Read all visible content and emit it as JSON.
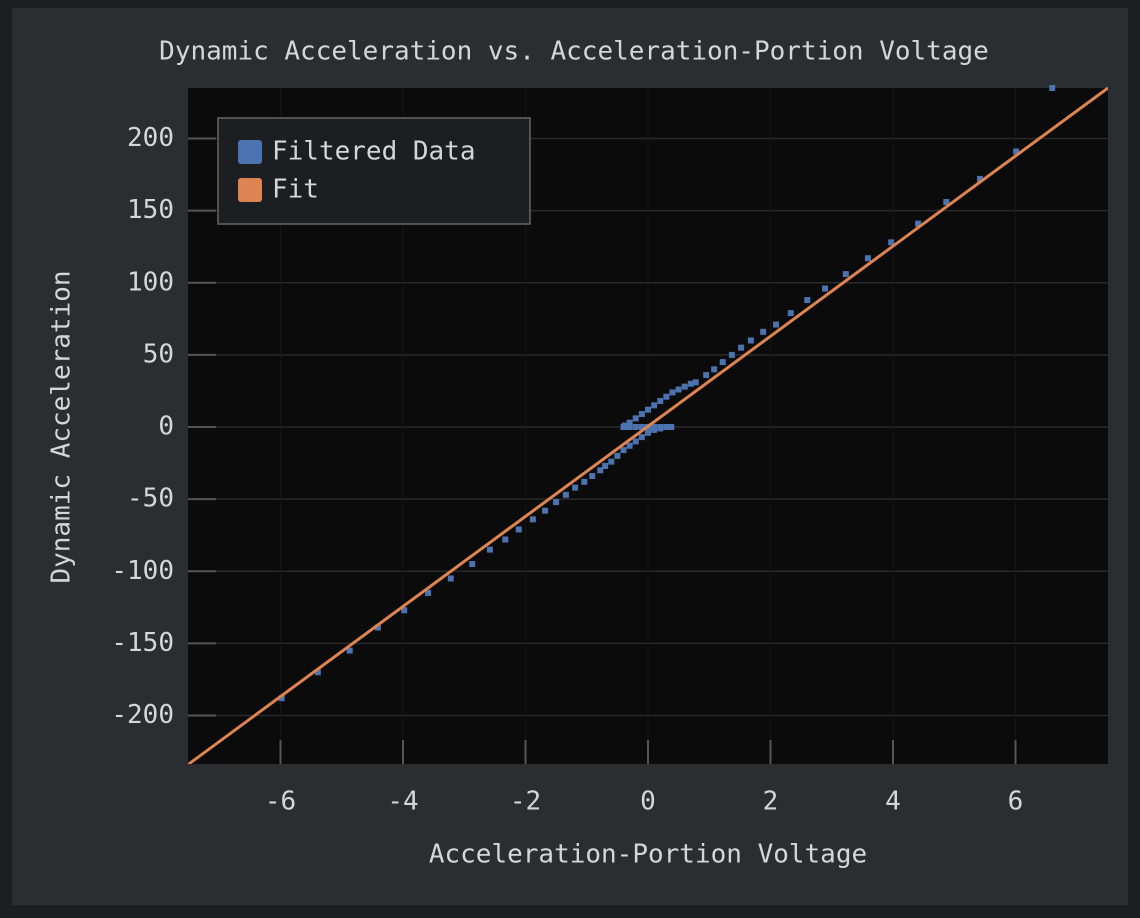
{
  "chart_data": {
    "type": "scatter",
    "title": "Dynamic Acceleration vs. Acceleration-Portion Voltage",
    "x_label": "Acceleration-Portion Voltage",
    "y_label": "Dynamic Acceleration",
    "xlim": [
      -7.51,
      7.51
    ],
    "ylim": [
      -233.6,
      235
    ],
    "xticks": [
      -6,
      -4,
      -2,
      0,
      2,
      4,
      6
    ],
    "yticks": [
      -200,
      -150,
      -100,
      -50,
      0,
      50,
      100,
      150,
      200
    ],
    "grid": true,
    "legend": "upper left",
    "series": [
      {
        "name": "Filtered Data",
        "color": "#4c72b0",
        "mode": "points",
        "x": [
          -5.98,
          -5.39,
          -4.87,
          -4.41,
          -3.98,
          -3.59,
          -3.22,
          -2.87,
          -2.58,
          -2.33,
          -2.11,
          -1.88,
          -1.68,
          -1.5,
          -1.34,
          -1.19,
          -1.04,
          -0.91,
          -0.78,
          -0.7,
          -0.6,
          -0.5,
          -0.4,
          -0.3,
          -0.2,
          -0.1,
          0,
          0.1,
          0.2,
          0.3,
          0.38,
          0.3,
          0.2,
          0.1,
          0,
          -0.1,
          -0.2,
          -0.3,
          -0.4,
          -0.38,
          -0.3,
          -0.2,
          -0.1,
          0,
          0.1,
          0.2,
          0.3,
          0.4,
          0.5,
          0.6,
          0.7,
          0.78,
          0.95,
          1.08,
          1.22,
          1.37,
          1.52,
          1.68,
          1.88,
          2.09,
          2.33,
          2.6,
          2.89,
          3.23,
          3.59,
          3.97,
          4.41,
          4.87,
          5.42,
          6.01,
          6.6
        ],
        "values": [
          -188,
          -170,
          -155,
          -139,
          -127,
          -115,
          -105,
          -95,
          -85,
          -78,
          -71,
          -64,
          -58,
          -52,
          -47,
          -42,
          -38,
          -34,
          -30,
          -27,
          -24,
          -20,
          -16,
          -13,
          -10,
          -7,
          -4,
          -2,
          -1,
          0,
          0,
          0,
          0,
          0,
          0,
          0,
          0,
          0,
          0,
          1,
          3,
          6,
          9,
          12,
          15,
          18,
          21,
          24,
          26,
          28,
          30,
          31,
          36,
          40,
          45,
          50,
          55,
          60,
          66,
          71,
          79,
          88,
          96,
          106,
          117,
          128,
          141,
          156,
          172,
          191,
          235
        ]
      },
      {
        "name": "Fit",
        "color": "#dd8452",
        "mode": "line",
        "x": [
          -7.51,
          7.51
        ],
        "values": [
          -234,
          235
        ]
      }
    ]
  }
}
